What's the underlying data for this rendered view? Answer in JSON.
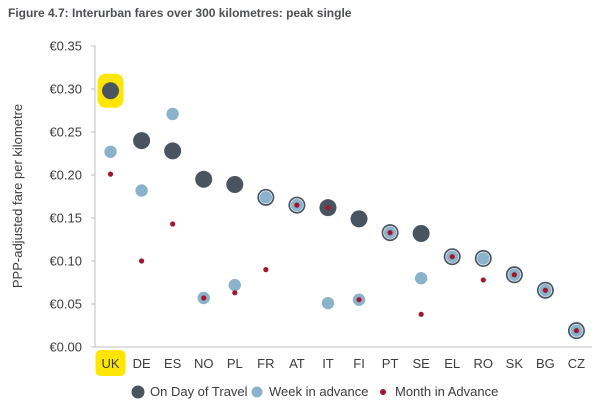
{
  "chart_data": {
    "type": "scatter",
    "title": "Figure 4.7: Interurban fares over 300 kilometres: peak single",
    "ylabel": "PPP-adjusted fare per kilometre",
    "xlabel": "",
    "ylim": [
      0,
      0.35
    ],
    "yticks": [
      0.0,
      0.05,
      0.1,
      0.15,
      0.2,
      0.25,
      0.3,
      0.35
    ],
    "ytick_labels": [
      "€0.00",
      "€0.05",
      "€0.10",
      "€0.15",
      "€0.20",
      "€0.25",
      "€0.30",
      "€0.35"
    ],
    "categories": [
      "UK",
      "DE",
      "ES",
      "NO",
      "PL",
      "FR",
      "AT",
      "IT",
      "FI",
      "PT",
      "SE",
      "EL",
      "RO",
      "SK",
      "BG",
      "CZ"
    ],
    "highlight_category": "UK",
    "highlight_color": "#ffe600",
    "grid": false,
    "legend_position": "bottom",
    "series": [
      {
        "name": "On Day of Travel",
        "color": "#4a5460",
        "values": [
          0.298,
          0.24,
          0.228,
          0.195,
          0.189,
          0.174,
          0.165,
          0.162,
          0.149,
          0.133,
          0.132,
          0.105,
          0.103,
          0.084,
          0.066,
          0.019
        ]
      },
      {
        "name": "Week in advance",
        "color": "#8ab3cb",
        "values": [
          0.227,
          0.182,
          0.271,
          0.057,
          0.072,
          0.174,
          0.165,
          0.051,
          0.055,
          0.133,
          0.08,
          0.105,
          0.103,
          0.084,
          0.066,
          0.019
        ]
      },
      {
        "name": "Month in Advance",
        "color": "#a3162e",
        "values": [
          0.201,
          0.1,
          0.143,
          0.057,
          0.063,
          0.09,
          0.165,
          0.162,
          0.055,
          0.133,
          0.038,
          0.105,
          0.078,
          0.084,
          0.066,
          0.019
        ]
      }
    ]
  }
}
